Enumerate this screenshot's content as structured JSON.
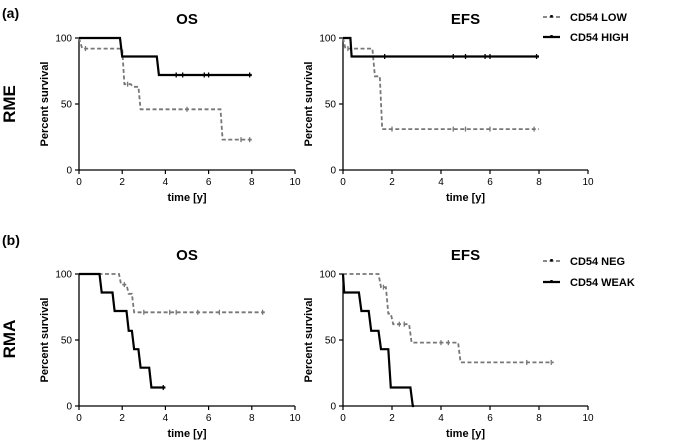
{
  "figure": {
    "rows": [
      {
        "panel_label": "(a)",
        "row_label": "RME",
        "legend": [
          "CD54 LOW",
          "CD54 HIGH"
        ]
      },
      {
        "panel_label": "(b)",
        "row_label": "RMA",
        "legend": [
          "CD54 NEG",
          "CD54 WEAK"
        ]
      }
    ]
  },
  "chart_data": [
    {
      "type": "line",
      "subtype": "kaplan-meier",
      "title": "OS",
      "xlabel": "time [y]",
      "ylabel": "Percent survival",
      "xlim": [
        0,
        10
      ],
      "ylim": [
        0,
        100
      ],
      "xticks": [
        0,
        2,
        4,
        6,
        8,
        10
      ],
      "yticks": [
        0,
        50,
        100
      ],
      "series": [
        {
          "name": "CD54 LOW",
          "style": "dashed",
          "steps": [
            [
              0,
              100
            ],
            [
              0.15,
              92
            ],
            [
              2,
              92
            ],
            [
              2.1,
              65
            ],
            [
              2.4,
              65
            ],
            [
              2.5,
              63
            ],
            [
              2.75,
              63
            ],
            [
              2.85,
              46
            ],
            [
              6.55,
              46
            ],
            [
              6.65,
              23
            ],
            [
              8,
              23
            ]
          ],
          "censored": [
            [
              0.3,
              92
            ],
            [
              2.25,
              65
            ],
            [
              5,
              46
            ],
            [
              7.5,
              23
            ],
            [
              7.9,
              23
            ]
          ]
        },
        {
          "name": "CD54 HIGH",
          "style": "solid",
          "steps": [
            [
              0,
              100
            ],
            [
              1.9,
              100
            ],
            [
              2,
              86
            ],
            [
              3.6,
              86
            ],
            [
              3.7,
              72
            ],
            [
              8,
              72
            ]
          ],
          "censored": [
            [
              4.5,
              72
            ],
            [
              4.8,
              72
            ],
            [
              5.8,
              72
            ],
            [
              6.0,
              72
            ],
            [
              7.9,
              72
            ]
          ]
        }
      ]
    },
    {
      "type": "line",
      "subtype": "kaplan-meier",
      "title": "EFS",
      "xlabel": "time [y]",
      "ylabel": "Percent survival",
      "xlim": [
        0,
        10
      ],
      "ylim": [
        0,
        100
      ],
      "xticks": [
        0,
        2,
        4,
        6,
        8,
        10
      ],
      "yticks": [
        0,
        50,
        100
      ],
      "series": [
        {
          "name": "CD54 LOW",
          "style": "dashed",
          "steps": [
            [
              0,
              100
            ],
            [
              0.1,
              92
            ],
            [
              1.2,
              92
            ],
            [
              1.3,
              71
            ],
            [
              1.5,
              71
            ],
            [
              1.6,
              31
            ],
            [
              8,
              31
            ]
          ],
          "censored": [
            [
              0.2,
              92
            ],
            [
              2,
              31
            ],
            [
              4.5,
              31
            ],
            [
              5,
              31
            ],
            [
              6,
              31
            ],
            [
              7.8,
              31
            ]
          ]
        },
        {
          "name": "CD54 HIGH",
          "style": "solid",
          "steps": [
            [
              0,
              100
            ],
            [
              0.3,
              100
            ],
            [
              0.35,
              86
            ],
            [
              8,
              86
            ]
          ],
          "censored": [
            [
              1.7,
              86
            ],
            [
              4.5,
              86
            ],
            [
              5,
              86
            ],
            [
              5.8,
              86
            ],
            [
              6,
              86
            ],
            [
              7.9,
              86
            ]
          ]
        }
      ]
    },
    {
      "type": "line",
      "subtype": "kaplan-meier",
      "title": "OS",
      "xlabel": "time [y]",
      "ylabel": "Percent survival",
      "xlim": [
        0,
        10
      ],
      "ylim": [
        0,
        100
      ],
      "xticks": [
        0,
        2,
        4,
        6,
        8,
        10
      ],
      "yticks": [
        0,
        50,
        100
      ],
      "series": [
        {
          "name": "CD54 NEG",
          "style": "dashed",
          "steps": [
            [
              0,
              100
            ],
            [
              1.85,
              100
            ],
            [
              1.95,
              92
            ],
            [
              2.2,
              92
            ],
            [
              2.3,
              85
            ],
            [
              2.45,
              85
            ],
            [
              2.55,
              71
            ],
            [
              8.6,
              71
            ]
          ],
          "censored": [
            [
              2.1,
              92
            ],
            [
              3,
              71
            ],
            [
              4.2,
              71
            ],
            [
              4.5,
              71
            ],
            [
              5.5,
              71
            ],
            [
              6.5,
              71
            ],
            [
              8.5,
              71
            ]
          ]
        },
        {
          "name": "CD54 WEAK",
          "style": "solid",
          "steps": [
            [
              0,
              100
            ],
            [
              0.95,
              100
            ],
            [
              1.05,
              86
            ],
            [
              1.55,
              86
            ],
            [
              1.65,
              72
            ],
            [
              2.2,
              72
            ],
            [
              2.3,
              57
            ],
            [
              2.45,
              57
            ],
            [
              2.55,
              43
            ],
            [
              2.75,
              43
            ],
            [
              2.85,
              29
            ],
            [
              3.25,
              29
            ],
            [
              3.35,
              14
            ],
            [
              4,
              14
            ]
          ],
          "censored": [
            [
              3.9,
              14
            ]
          ]
        }
      ]
    },
    {
      "type": "line",
      "subtype": "kaplan-meier",
      "title": "EFS",
      "xlabel": "time [y]",
      "ylabel": "Percent survival",
      "xlim": [
        0,
        10
      ],
      "ylim": [
        0,
        100
      ],
      "xticks": [
        0,
        2,
        4,
        6,
        8,
        10
      ],
      "yticks": [
        0,
        50,
        100
      ],
      "series": [
        {
          "name": "CD54 NEG",
          "style": "dashed",
          "steps": [
            [
              0,
              100
            ],
            [
              1.45,
              100
            ],
            [
              1.55,
              90
            ],
            [
              1.75,
              90
            ],
            [
              1.85,
              70
            ],
            [
              1.95,
              70
            ],
            [
              2.05,
              62
            ],
            [
              2.7,
              62
            ],
            [
              2.8,
              48
            ],
            [
              4.7,
              48
            ],
            [
              4.8,
              33
            ],
            [
              8.6,
              33
            ]
          ],
          "censored": [
            [
              1.65,
              90
            ],
            [
              2.3,
              62
            ],
            [
              2.5,
              62
            ],
            [
              4,
              48
            ],
            [
              4.3,
              48
            ],
            [
              7.5,
              33
            ],
            [
              8.5,
              33
            ]
          ]
        },
        {
          "name": "CD54 WEAK",
          "style": "solid",
          "steps": [
            [
              0,
              100
            ],
            [
              0.05,
              86
            ],
            [
              0.65,
              86
            ],
            [
              0.75,
              72
            ],
            [
              1.05,
              72
            ],
            [
              1.15,
              57
            ],
            [
              1.45,
              57
            ],
            [
              1.55,
              43
            ],
            [
              1.85,
              43
            ],
            [
              1.95,
              14
            ],
            [
              2.75,
              14
            ],
            [
              2.85,
              0
            ],
            [
              2.9,
              0
            ]
          ],
          "censored": []
        }
      ]
    }
  ]
}
